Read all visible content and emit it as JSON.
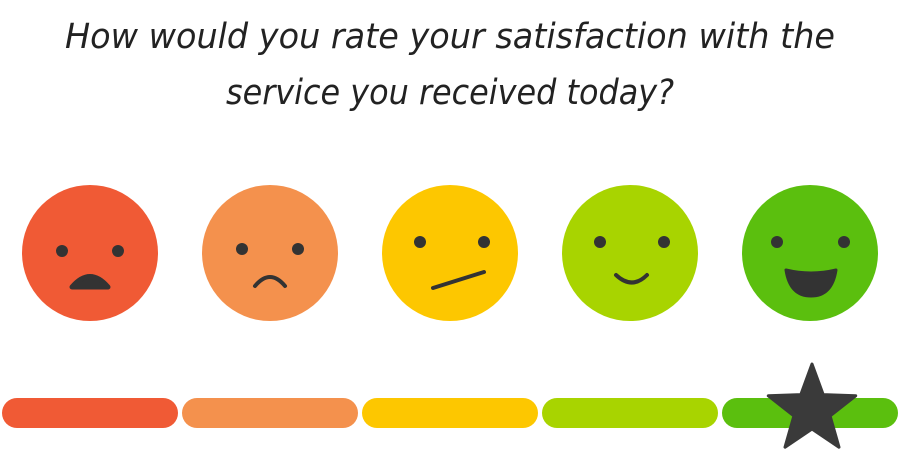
{
  "question": {
    "lines": [
      "How would you rate your satisfaction with the",
      "service you received today?"
    ]
  },
  "rating": {
    "selected": 5
  }
}
